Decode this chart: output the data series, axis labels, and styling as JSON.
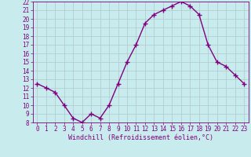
{
  "x": [
    0,
    1,
    2,
    3,
    4,
    5,
    6,
    7,
    8,
    9,
    10,
    11,
    12,
    13,
    14,
    15,
    16,
    17,
    18,
    19,
    20,
    21,
    22,
    23
  ],
  "y": [
    12.5,
    12.0,
    11.5,
    10.0,
    8.5,
    8.0,
    9.0,
    8.5,
    10.0,
    12.5,
    15.0,
    17.0,
    19.5,
    20.5,
    21.0,
    21.5,
    22.0,
    21.5,
    20.5,
    17.0,
    15.0,
    14.5,
    13.5,
    12.5
  ],
  "line_color": "#800080",
  "marker": "+",
  "marker_size": 4,
  "bg_color": "#c8eced",
  "grid_color": "#b0c8c8",
  "xlabel": "Windchill (Refroidissement éolien,°C)",
  "xlabel_color": "#800080",
  "tick_color": "#800080",
  "ylim": [
    8,
    22
  ],
  "xlim": [
    -0.5,
    23.5
  ],
  "yticks": [
    8,
    9,
    10,
    11,
    12,
    13,
    14,
    15,
    16,
    17,
    18,
    19,
    20,
    21,
    22
  ],
  "xticks": [
    0,
    1,
    2,
    3,
    4,
    5,
    6,
    7,
    8,
    9,
    10,
    11,
    12,
    13,
    14,
    15,
    16,
    17,
    18,
    19,
    20,
    21,
    22,
    23
  ],
  "line_width": 1.0,
  "tick_fontsize": 5.5,
  "xlabel_fontsize": 6.0
}
